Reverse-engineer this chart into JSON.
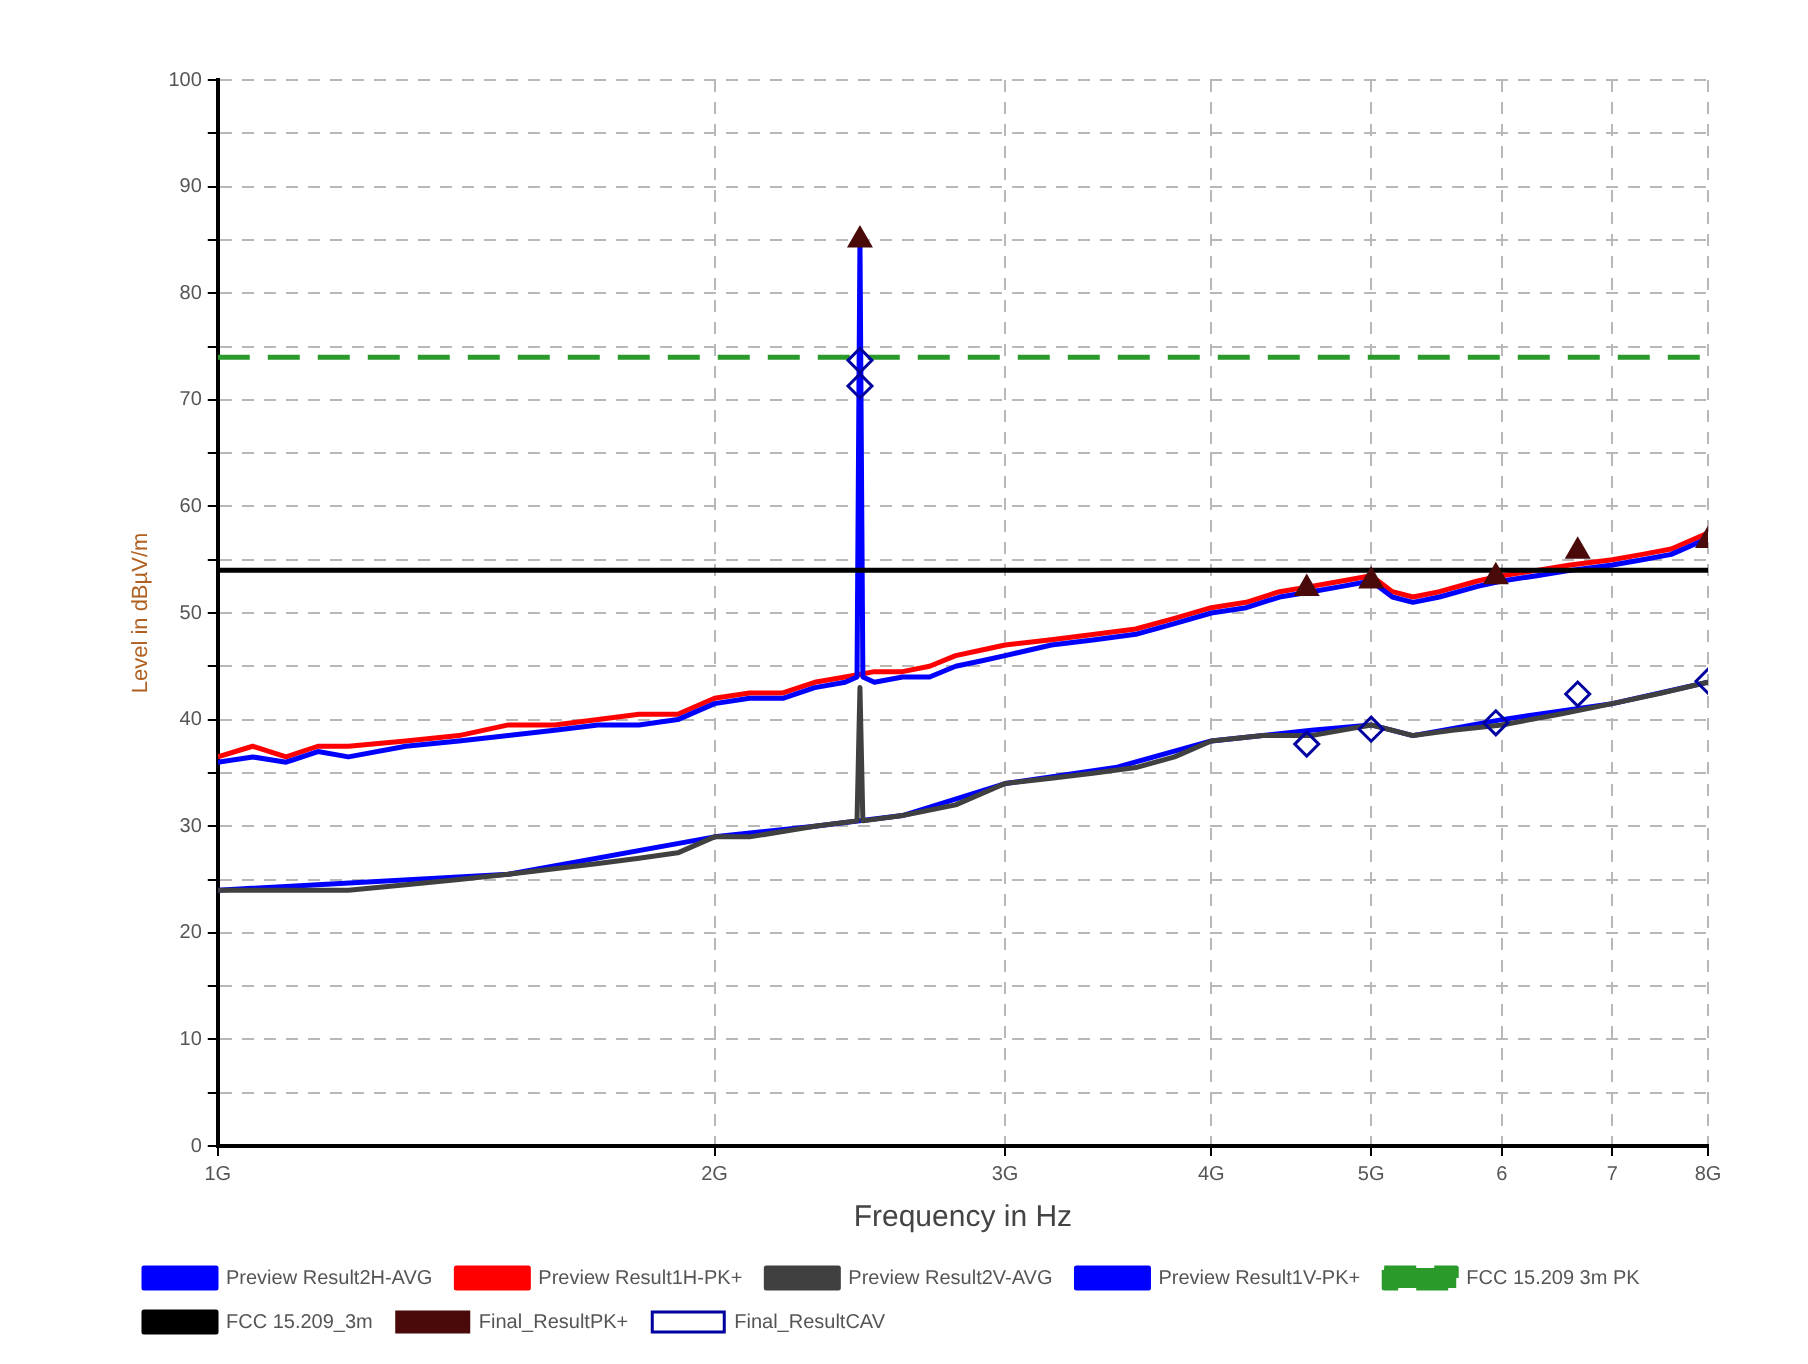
{
  "chart_data": {
    "type": "line",
    "xlabel": "Frequency in Hz",
    "ylabel": "Level in dBµV/m",
    "log": "x",
    "grid": true,
    "legend": "bottom",
    "marker": "none",
    "line_style": "solid",
    "xlim": [
      1,
      8
    ],
    "xticks": [
      {
        "value": 1,
        "label": "1G"
      },
      {
        "value": 2,
        "label": "2G"
      },
      {
        "value": 3,
        "label": "3G"
      },
      {
        "value": 4,
        "label": "4G"
      },
      {
        "value": 5,
        "label": "5G"
      },
      {
        "value": 6,
        "label": "6"
      },
      {
        "value": 7,
        "label": "7"
      },
      {
        "value": 8,
        "label": "8G"
      }
    ],
    "ylim": [
      0,
      100
    ],
    "yticks": [
      0,
      {
        "value": 5,
        "label": null
      },
      10,
      {
        "value": 15,
        "label": null
      },
      20,
      {
        "value": 25,
        "label": null
      },
      30,
      {
        "value": 35,
        "label": null
      },
      40,
      {
        "value": 45,
        "label": null
      },
      50,
      {
        "value": 55,
        "label": null
      },
      60,
      {
        "value": 65,
        "label": null
      },
      70,
      {
        "value": 75,
        "label": null
      },
      80,
      {
        "value": 85,
        "label": null
      },
      90,
      {
        "value": 95,
        "label": null
      },
      100
    ],
    "series": [
      {
        "name": "Preview Result2H-AVG",
        "color": "#0000ff",
        "x": [
          1,
          1.5,
          2,
          2.3,
          2.6,
          3,
          3.5,
          4,
          4.6,
          5,
          5.3,
          6,
          7,
          8
        ],
        "values": [
          24,
          25.5,
          29,
          30,
          31,
          34,
          35.5,
          38,
          39,
          39.5,
          38.5,
          40,
          41.5,
          43.5
        ]
      },
      {
        "name": "Preview Result1H-PK+",
        "color": "#ff0000",
        "x": [
          1,
          1.05,
          1.1,
          1.15,
          1.2,
          1.3,
          1.4,
          1.5,
          1.6,
          1.7,
          1.8,
          1.9,
          2,
          2.1,
          2.2,
          2.3,
          2.4,
          2.5,
          2.6,
          2.7,
          2.8,
          2.9,
          3,
          3.2,
          3.4,
          3.6,
          3.8,
          4,
          4.2,
          4.4,
          4.6,
          4.8,
          5,
          5.15,
          5.3,
          5.5,
          5.8,
          6,
          6.3,
          6.6,
          7,
          7.3,
          7.6,
          8
        ],
        "values": [
          36.5,
          37.5,
          36.5,
          37.5,
          37.5,
          38,
          38.5,
          39.5,
          39.5,
          40,
          40.5,
          40.5,
          42,
          42.5,
          42.5,
          43.5,
          44,
          44.5,
          44.5,
          45,
          46,
          46.5,
          47,
          47.5,
          48,
          48.5,
          49.5,
          50.5,
          51,
          52,
          52.5,
          53,
          53.5,
          52,
          51.5,
          52,
          53,
          53.5,
          54,
          54.5,
          55,
          55.5,
          56,
          57.5
        ]
      },
      {
        "name": "Preview Result2V-AVG",
        "color": "#404040",
        "x": [
          1,
          1.1,
          1.2,
          1.3,
          1.4,
          1.5,
          1.6,
          1.7,
          1.8,
          1.9,
          2,
          2.1,
          2.2,
          2.3,
          2.44,
          2.45,
          2.46,
          2.6,
          2.8,
          3,
          3.2,
          3.4,
          3.6,
          3.8,
          4,
          4.3,
          4.6,
          5,
          5.3,
          5.6,
          6,
          6.5,
          7,
          7.5,
          8
        ],
        "values": [
          24,
          24,
          24,
          24.5,
          25,
          25.5,
          26,
          26.5,
          27,
          27.5,
          29,
          29,
          29.5,
          30,
          30.5,
          43,
          30.5,
          31,
          32,
          34,
          34.5,
          35,
          35.5,
          36.5,
          38,
          38.5,
          38.5,
          39.5,
          38.5,
          39,
          39.5,
          40.5,
          41.5,
          42.5,
          43.5
        ]
      },
      {
        "name": "Preview Result1V-PK+",
        "color": "#0000ff",
        "x": [
          1,
          1.05,
          1.1,
          1.15,
          1.2,
          1.3,
          1.4,
          1.5,
          1.6,
          1.7,
          1.8,
          1.9,
          2,
          2.1,
          2.2,
          2.3,
          2.4,
          2.44,
          2.45,
          2.46,
          2.5,
          2.6,
          2.7,
          2.8,
          2.9,
          3,
          3.2,
          3.4,
          3.6,
          3.8,
          4,
          4.2,
          4.4,
          4.6,
          4.8,
          5,
          5.15,
          5.3,
          5.5,
          5.8,
          6,
          6.3,
          6.6,
          7,
          7.3,
          7.6,
          8
        ],
        "values": [
          36,
          36.5,
          36,
          37,
          36.5,
          37.5,
          38,
          38.5,
          39,
          39.5,
          39.5,
          40,
          41.5,
          42,
          42,
          43,
          43.5,
          44,
          85,
          44,
          43.5,
          44,
          44,
          45,
          45.5,
          46,
          47,
          47.5,
          48,
          49,
          50,
          50.5,
          51.5,
          52,
          52.5,
          53,
          51.5,
          51,
          51.5,
          52.5,
          53,
          53.5,
          54,
          54.5,
          55,
          55.5,
          57
        ]
      },
      {
        "name": "FCC 15.209 3m PK",
        "color": "#2a9a2a",
        "line_style": "dashed",
        "x": [
          1,
          8
        ],
        "values": [
          74,
          74
        ]
      },
      {
        "name": "FCC 15.209_3m",
        "color": "#000000",
        "x": [
          1,
          8
        ],
        "values": [
          54,
          54
        ]
      },
      {
        "name": "Final_ResultPK+",
        "type": "scatter",
        "marker": "triangle",
        "color": "#4a0a0a",
        "x": [
          2.45,
          4.57,
          5,
          5.95,
          6.67,
          8
        ],
        "values": [
          85,
          52.3,
          53,
          53.4,
          55.8,
          56.8
        ]
      },
      {
        "name": "Final_ResultCAV",
        "type": "scatter",
        "marker": "diamond",
        "color": "#0000a0",
        "x": [
          2.45,
          2.45,
          4.57,
          5,
          5.95,
          6.67,
          8
        ],
        "values": [
          73.7,
          71.3,
          37.7,
          39.1,
          39.7,
          42.4,
          43.6
        ]
      }
    ]
  }
}
